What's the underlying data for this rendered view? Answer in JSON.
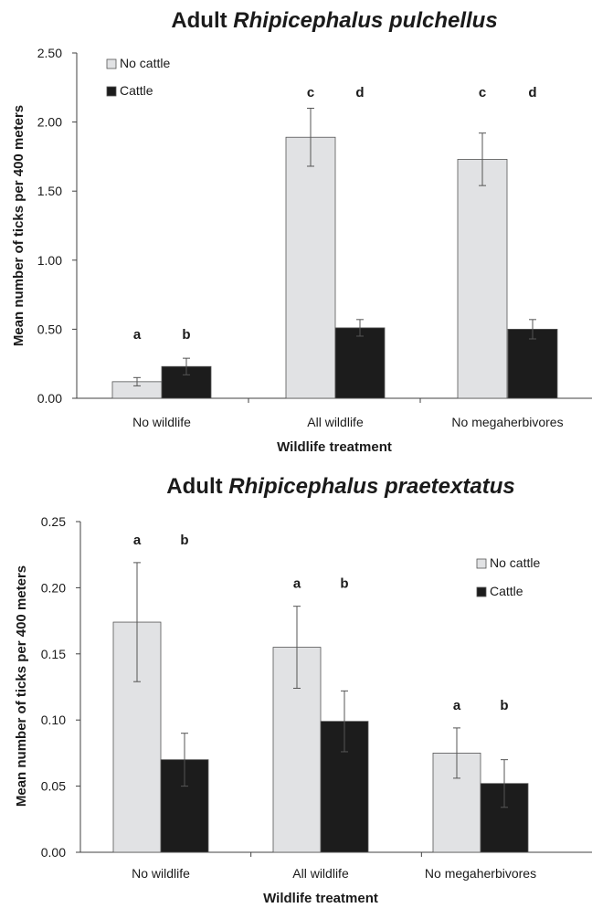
{
  "colors": {
    "no_cattle": "#e1e2e4",
    "cattle": "#1c1c1c",
    "axis": "#404040",
    "bar_stroke": "#555555"
  },
  "chart_data": [
    {
      "type": "bar",
      "title_prefix": "Adult ",
      "title_italic": "Rhipicephalus pulchellus",
      "xlabel": "Wildlife treatment",
      "ylabel": "Mean number of ticks per 400 meters",
      "ylim": [
        0,
        2.5
      ],
      "yticks": [
        "0.00",
        "0.50",
        "1.00",
        "1.50",
        "2.00",
        "2.50"
      ],
      "categories": [
        "No wildlife",
        "All wildlife",
        "No megaherbivores"
      ],
      "series": [
        {
          "name": "No cattle",
          "values": [
            0.12,
            1.89,
            1.73
          ],
          "errors": [
            0.03,
            0.21,
            0.19
          ],
          "letters": [
            "a",
            "c",
            "c"
          ]
        },
        {
          "name": "Cattle",
          "values": [
            0.23,
            0.51,
            0.5
          ],
          "errors": [
            0.06,
            0.06,
            0.07
          ],
          "letters": [
            "b",
            "d",
            "d"
          ]
        }
      ],
      "legend": "top-left"
    },
    {
      "type": "bar",
      "title_prefix": "Adult ",
      "title_italic": "Rhipicephalus praetextatus",
      "xlabel": "Wildlife treatment",
      "ylabel": "Mean number of ticks per 400 meters",
      "ylim": [
        0,
        0.25
      ],
      "yticks": [
        "0.00",
        "0.05",
        "0.10",
        "0.15",
        "0.20",
        "0.25"
      ],
      "categories": [
        "No wildlife",
        "All wildlife",
        "No megaherbivores"
      ],
      "series": [
        {
          "name": "No cattle",
          "values": [
            0.174,
            0.155,
            0.075
          ],
          "errors": [
            0.045,
            0.031,
            0.019
          ],
          "letters": [
            "a",
            "a",
            "a"
          ]
        },
        {
          "name": "Cattle",
          "values": [
            0.07,
            0.099,
            0.052
          ],
          "errors": [
            0.02,
            0.023,
            0.018
          ],
          "letters": [
            "b",
            "b",
            "b"
          ]
        }
      ],
      "legend": "right"
    }
  ]
}
